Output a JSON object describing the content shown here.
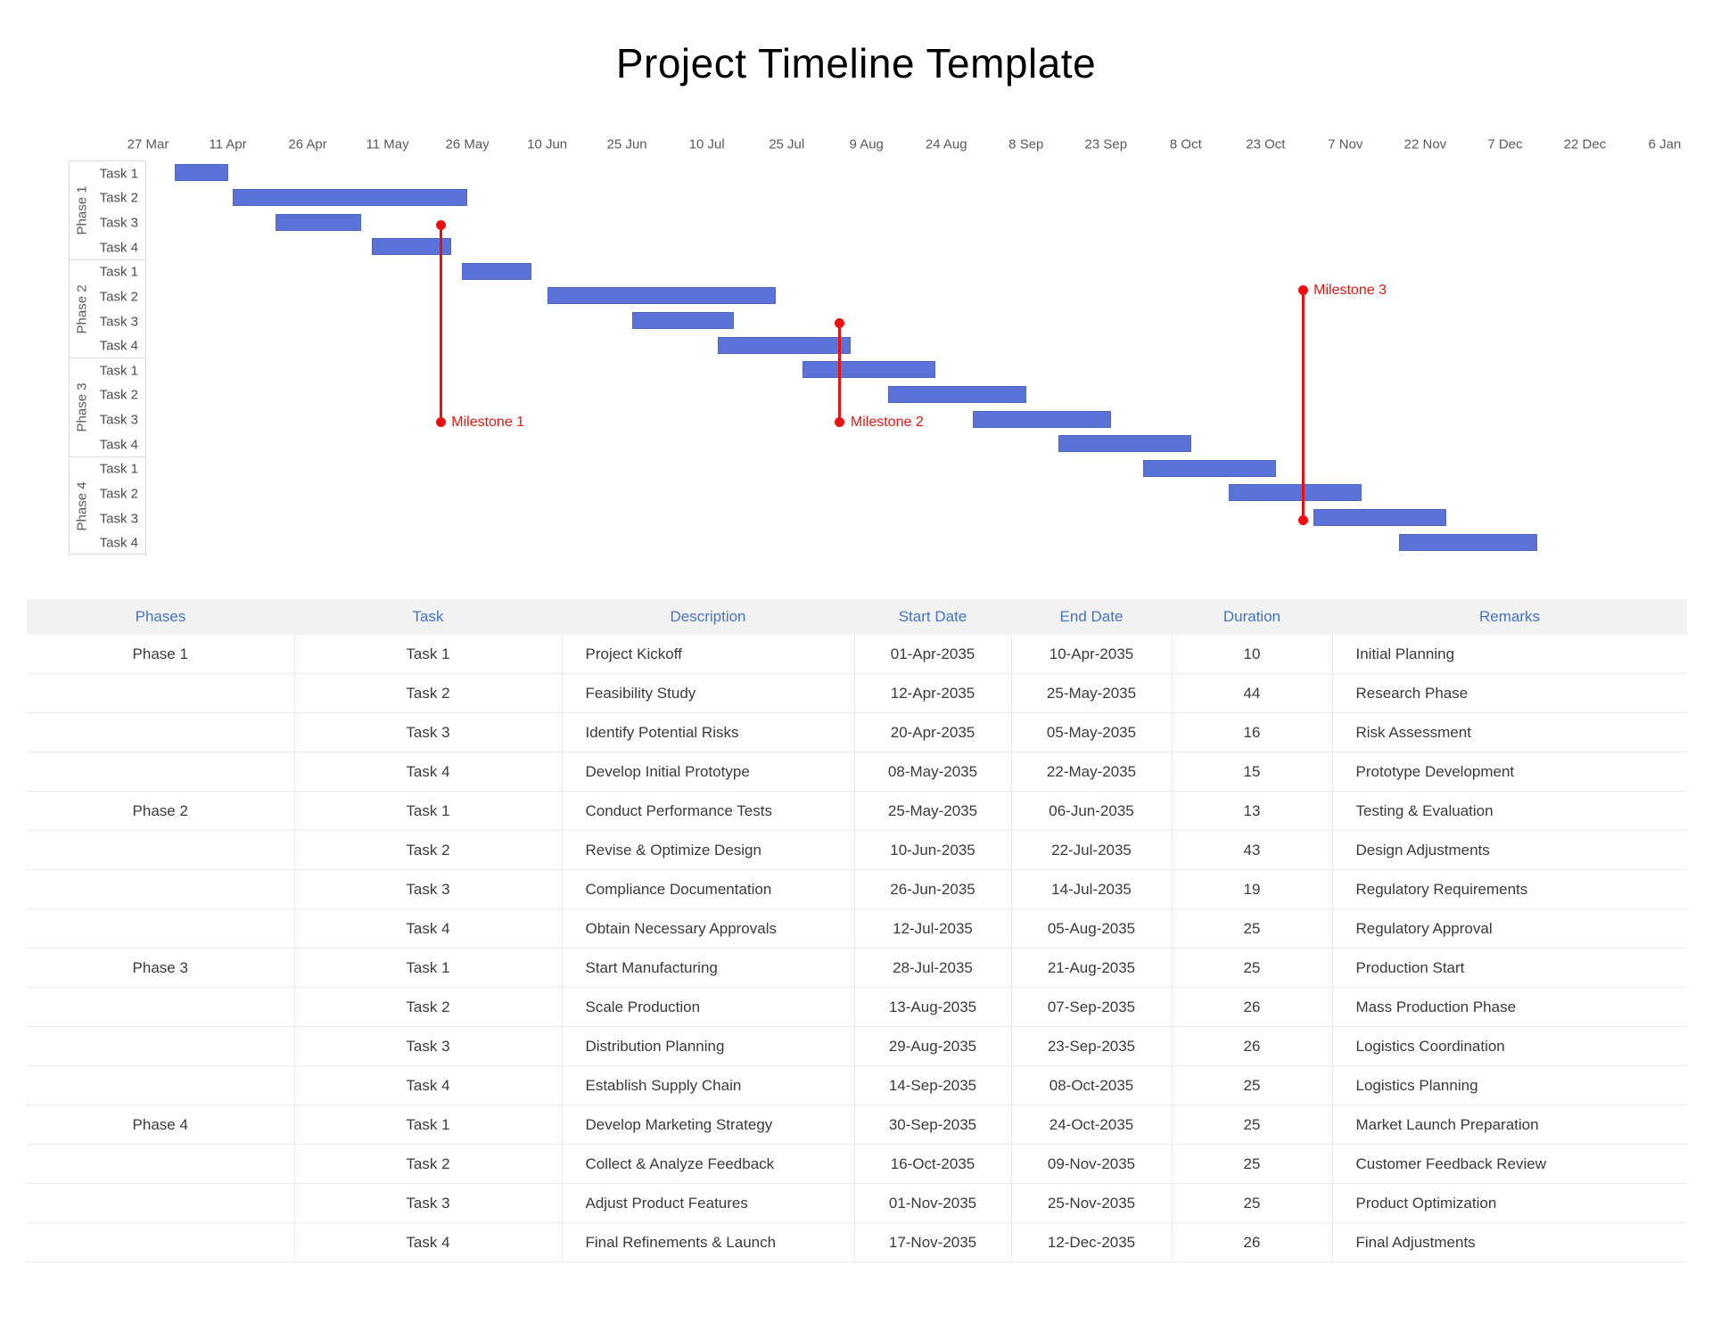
{
  "title": "Project Timeline Template",
  "chart_data": {
    "type": "bar",
    "subtype": "gantt-timeline",
    "title": "Project Timeline Template",
    "x_axis": {
      "tick_labels": [
        "27 Mar",
        "11 Apr",
        "26 Apr",
        "11 May",
        "26 May",
        "10 Jun",
        "25 Jun",
        "10 Jul",
        "25 Jul",
        "9 Aug",
        "24 Aug",
        "8 Sep",
        "23 Sep",
        "8 Oct",
        "23 Oct",
        "7 Nov",
        "22 Nov",
        "7 Dec",
        "22 Dec",
        "6 Jan"
      ],
      "tick_interval_days": 15,
      "range_start": "2035-03-27",
      "range_end": "2036-01-06"
    },
    "bar_color": "#5b73d8",
    "milestone_color": "#ec1111",
    "phases": [
      {
        "label": "Phase 1",
        "tasks": [
          {
            "label": "Task 1",
            "description": "Project Kickoff",
            "start": "2035-04-01",
            "end": "2035-04-10",
            "duration": 10,
            "remarks": "Initial Planning"
          },
          {
            "label": "Task 2",
            "description": "Feasibility Study",
            "start": "2035-04-12",
            "end": "2035-05-25",
            "duration": 44,
            "remarks": "Research Phase"
          },
          {
            "label": "Task 3",
            "description": "Identify Potential Risks",
            "start": "2035-04-20",
            "end": "2035-05-05",
            "duration": 16,
            "remarks": "Risk Assessment"
          },
          {
            "label": "Task 4",
            "description": "Develop Initial Prototype",
            "start": "2035-05-08",
            "end": "2035-05-22",
            "duration": 15,
            "remarks": "Prototype Development"
          }
        ]
      },
      {
        "label": "Phase 2",
        "tasks": [
          {
            "label": "Task 1",
            "description": "Conduct Performance Tests",
            "start": "2035-05-25",
            "end": "2035-06-06",
            "duration": 13,
            "remarks": "Testing & Evaluation"
          },
          {
            "label": "Task 2",
            "description": "Revise & Optimize Design",
            "start": "2035-06-10",
            "end": "2035-07-22",
            "duration": 43,
            "remarks": "Design Adjustments"
          },
          {
            "label": "Task 3",
            "description": "Compliance Documentation",
            "start": "2035-06-26",
            "end": "2035-07-14",
            "duration": 19,
            "remarks": "Regulatory Requirements"
          },
          {
            "label": "Task 4",
            "description": "Obtain Necessary Approvals",
            "start": "2035-07-12",
            "end": "2035-08-05",
            "duration": 25,
            "remarks": "Regulatory Approval"
          }
        ]
      },
      {
        "label": "Phase 3",
        "tasks": [
          {
            "label": "Task 1",
            "description": "Start Manufacturing",
            "start": "2035-07-28",
            "end": "2035-08-21",
            "duration": 25,
            "remarks": "Production Start"
          },
          {
            "label": "Task 2",
            "description": "Scale Production",
            "start": "2035-08-13",
            "end": "2035-09-07",
            "duration": 26,
            "remarks": "Mass Production Phase"
          },
          {
            "label": "Task 3",
            "description": "Distribution Planning",
            "start": "2035-08-29",
            "end": "2035-09-23",
            "duration": 26,
            "remarks": "Logistics Coordination"
          },
          {
            "label": "Task 4",
            "description": "Establish Supply Chain",
            "start": "2035-09-14",
            "end": "2035-10-08",
            "duration": 25,
            "remarks": "Logistics Planning"
          }
        ]
      },
      {
        "label": "Phase 4",
        "tasks": [
          {
            "label": "Task 1",
            "description": "Develop Marketing Strategy",
            "start": "2035-09-30",
            "end": "2035-10-24",
            "duration": 25,
            "remarks": "Market Launch Preparation"
          },
          {
            "label": "Task 2",
            "description": "Collect & Analyze Feedback",
            "start": "2035-10-16",
            "end": "2035-11-09",
            "duration": 25,
            "remarks": "Customer Feedback Review"
          },
          {
            "label": "Task 3",
            "description": "Adjust Product Features",
            "start": "2035-11-01",
            "end": "2035-11-25",
            "duration": 25,
            "remarks": "Product Optimization"
          },
          {
            "label": "Task 4",
            "description": "Final Refinements & Launch",
            "start": "2035-11-17",
            "end": "2035-12-12",
            "duration": 26,
            "remarks": "Final Adjustments"
          }
        ]
      }
    ],
    "milestones": [
      {
        "label": "Milestone 1",
        "date": "2035-05-21",
        "label_position": "bottom"
      },
      {
        "label": "Milestone 2",
        "date": "2035-08-04",
        "label_position": "bottom"
      },
      {
        "label": "Milestone 3",
        "date": "2035-10-30",
        "label_position": "top"
      }
    ]
  },
  "table": {
    "headers": [
      "Phases",
      "Task",
      "Description",
      "Start Date",
      "End Date",
      "Duration",
      "Remarks"
    ],
    "header_color": "#4472c4"
  }
}
